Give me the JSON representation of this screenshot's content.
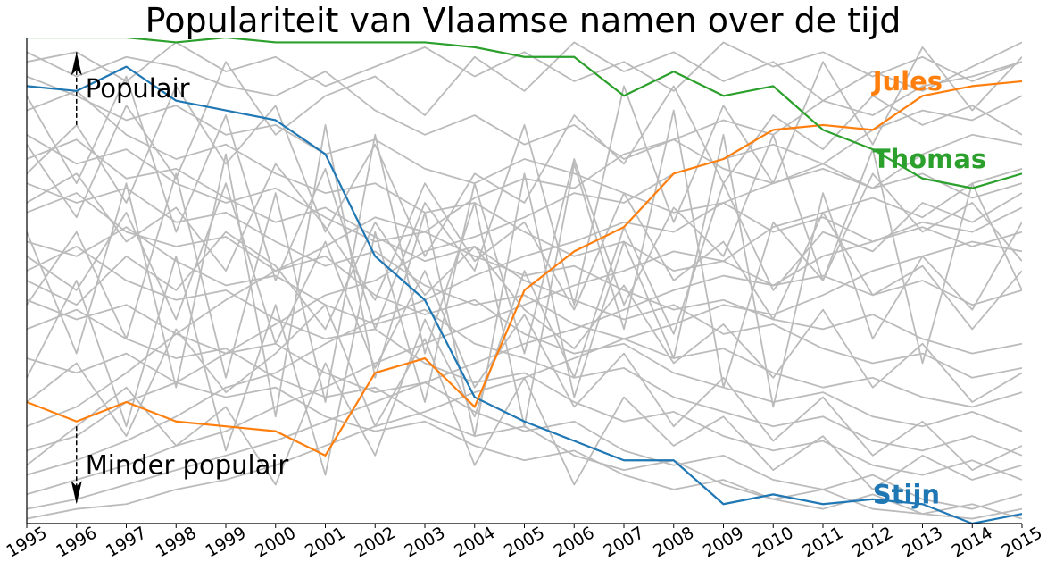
{
  "chart_data": {
    "type": "line",
    "title": "Populariteit van Vlaamse namen over de tijd",
    "xlabel": "",
    "ylabel": "",
    "x": [
      1995,
      1996,
      1997,
      1998,
      1999,
      2000,
      2001,
      2002,
      2003,
      2004,
      2005,
      2006,
      2007,
      2008,
      2009,
      2010,
      2011,
      2012,
      2013,
      2014,
      2015
    ],
    "x_tick_labels": [
      "1995",
      "1996",
      "1997",
      "1998",
      "1999",
      "2000",
      "2001",
      "2002",
      "2003",
      "2004",
      "2005",
      "2006",
      "2007",
      "2008",
      "2009",
      "2010",
      "2011",
      "2012",
      "2013",
      "2014",
      "2015"
    ],
    "xlim": [
      1995,
      2015
    ],
    "ylim": [
      0,
      100
    ],
    "y_axis_visible": false,
    "grid": false,
    "highlighted_series": [
      {
        "name": "Stijn",
        "color": "#1f77b4",
        "values": [
          90,
          89,
          94,
          87,
          85,
          83,
          76,
          55,
          46,
          26,
          21,
          17,
          13,
          13,
          4,
          6,
          4,
          5,
          4,
          0,
          2
        ]
      },
      {
        "name": "Jules",
        "color": "#ff7f0e",
        "values": [
          25,
          21,
          25,
          21,
          20,
          19,
          14,
          31,
          34,
          24,
          48,
          56,
          61,
          72,
          75,
          81,
          82,
          81,
          88,
          90,
          91
        ]
      },
      {
        "name": "Thomas",
        "color": "#2ca02c",
        "values": [
          100,
          100,
          100,
          99,
          100,
          99,
          99,
          99,
          99,
          98,
          96,
          96,
          88,
          93,
          88,
          90,
          81,
          77,
          71,
          69,
          72
        ]
      }
    ],
    "background_series_color": "#bbbbbb",
    "background_series": [
      [
        97,
        92,
        96,
        94,
        90,
        88,
        93,
        85,
        80,
        84,
        78,
        82,
        75,
        79,
        73,
        70,
        74,
        69,
        72,
        67,
        70
      ],
      [
        92,
        88,
        83,
        86,
        80,
        82,
        76,
        79,
        73,
        70,
        75,
        72,
        68,
        64,
        66,
        60,
        63,
        58,
        61,
        57,
        60
      ],
      [
        85,
        89,
        80,
        75,
        78,
        72,
        68,
        70,
        64,
        66,
        60,
        55,
        58,
        52,
        54,
        49,
        51,
        47,
        50,
        45,
        48
      ],
      [
        80,
        74,
        77,
        70,
        66,
        69,
        63,
        58,
        60,
        55,
        51,
        53,
        48,
        44,
        46,
        42,
        40,
        43,
        38,
        35,
        37
      ],
      [
        75,
        79,
        71,
        73,
        67,
        62,
        65,
        59,
        54,
        57,
        50,
        46,
        42,
        45,
        39,
        41,
        36,
        33,
        35,
        30,
        32
      ],
      [
        70,
        66,
        69,
        62,
        64,
        58,
        53,
        56,
        49,
        45,
        47,
        41,
        38,
        34,
        36,
        31,
        28,
        30,
        26,
        24,
        27
      ],
      [
        64,
        68,
        60,
        57,
        59,
        52,
        55,
        47,
        43,
        46,
        39,
        35,
        37,
        31,
        28,
        25,
        27,
        22,
        20,
        23,
        19
      ],
      [
        58,
        55,
        61,
        54,
        49,
        51,
        45,
        41,
        44,
        37,
        34,
        30,
        32,
        26,
        23,
        20,
        22,
        17,
        15,
        18,
        14
      ],
      [
        52,
        57,
        50,
        46,
        48,
        42,
        38,
        40,
        33,
        29,
        31,
        25,
        21,
        23,
        18,
        15,
        17,
        12,
        10,
        13,
        9
      ],
      [
        46,
        42,
        45,
        39,
        35,
        37,
        31,
        27,
        29,
        23,
        19,
        21,
        15,
        12,
        14,
        9,
        7,
        10,
        5,
        3,
        6
      ],
      [
        40,
        44,
        38,
        34,
        36,
        30,
        26,
        28,
        22,
        18,
        20,
        14,
        11,
        13,
        8,
        5,
        7,
        3,
        2,
        4,
        1
      ],
      [
        34,
        31,
        35,
        29,
        26,
        28,
        22,
        19,
        21,
        16,
        13,
        15,
        10,
        7,
        9,
        5,
        3,
        6,
        2,
        1,
        3
      ],
      [
        20,
        24,
        31,
        39,
        46,
        52,
        57,
        63,
        60,
        67,
        71,
        69,
        76,
        79,
        83,
        80,
        87,
        84,
        90,
        92,
        95
      ],
      [
        15,
        18,
        25,
        29,
        35,
        41,
        47,
        50,
        56,
        59,
        63,
        68,
        66,
        72,
        75,
        78,
        74,
        81,
        85,
        83,
        88
      ],
      [
        10,
        13,
        17,
        22,
        28,
        31,
        37,
        42,
        46,
        51,
        55,
        58,
        62,
        60,
        66,
        70,
        73,
        69,
        76,
        80,
        78
      ],
      [
        6,
        9,
        12,
        16,
        19,
        24,
        28,
        33,
        37,
        41,
        45,
        49,
        52,
        56,
        54,
        61,
        64,
        67,
        63,
        70,
        73
      ],
      [
        3,
        5,
        8,
        11,
        14,
        17,
        21,
        25,
        29,
        33,
        37,
        40,
        44,
        48,
        51,
        49,
        55,
        58,
        62,
        60,
        65
      ],
      [
        1,
        3,
        4,
        7,
        9,
        12,
        16,
        20,
        23,
        27,
        30,
        34,
        38,
        41,
        45,
        43,
        47,
        52,
        55,
        58,
        56
      ],
      [
        45,
        60,
        38,
        72,
        30,
        68,
        25,
        80,
        35,
        66,
        20,
        74,
        40,
        85,
        28,
        62,
        50,
        77,
        33,
        70,
        48
      ],
      [
        60,
        35,
        70,
        28,
        76,
        22,
        82,
        30,
        64,
        18,
        72,
        26,
        58,
        34,
        80,
        24,
        68,
        38,
        55,
        44,
        62
      ],
      [
        88,
        70,
        92,
        60,
        84,
        50,
        73,
        40,
        66,
        52,
        82,
        45,
        90,
        62,
        86,
        70,
        95,
        78,
        98,
        85,
        96
      ],
      [
        30,
        50,
        20,
        55,
        15,
        45,
        10,
        60,
        25,
        70,
        35,
        75,
        45,
        65,
        55,
        80,
        50,
        72,
        60,
        66,
        54
      ],
      [
        78,
        63,
        86,
        71,
        95,
        80,
        88,
        92,
        84,
        96,
        89,
        99,
        93,
        97,
        91,
        95,
        87,
        93,
        89,
        94,
        99
      ],
      [
        50,
        45,
        55,
        48,
        60,
        53,
        40,
        62,
        47,
        57,
        44,
        36,
        49,
        33,
        41,
        30,
        44,
        28,
        37,
        25,
        31
      ],
      [
        25,
        33,
        18,
        40,
        27,
        35,
        45,
        20,
        38,
        12,
        30,
        8,
        26,
        16,
        22,
        11,
        18,
        7,
        14,
        9,
        12
      ],
      [
        95,
        97,
        91,
        99,
        93,
        96,
        90,
        94,
        98,
        92,
        97,
        91,
        95,
        89,
        99,
        94,
        97,
        92,
        96,
        91,
        95
      ],
      [
        66,
        72,
        58,
        65,
        52,
        74,
        61,
        46,
        70,
        54,
        62,
        44,
        68,
        50,
        58,
        42,
        64,
        47,
        53,
        40,
        52
      ],
      [
        12,
        20,
        28,
        16,
        24,
        8,
        33,
        14,
        42,
        22,
        52,
        30,
        61,
        39,
        70,
        48,
        60,
        56,
        66,
        62,
        68
      ],
      [
        55,
        48,
        64,
        42,
        70,
        37,
        58,
        32,
        52,
        28,
        43,
        24,
        35,
        20,
        30,
        17,
        26,
        14,
        21,
        11,
        16
      ],
      [
        72,
        82,
        66,
        90,
        74,
        86,
        60,
        78,
        55,
        72,
        66,
        84,
        74,
        90,
        70,
        84,
        77,
        88,
        82,
        86,
        80
      ]
    ],
    "annotations": [
      {
        "text": "Populair",
        "arrow": "up",
        "x": 1996,
        "y_from": 82,
        "y_to": 97
      },
      {
        "text": "Minder populair",
        "arrow": "down",
        "x": 1996,
        "y_from": 20,
        "y_to": 4
      }
    ],
    "series_labels": [
      {
        "text": "Jules",
        "color": "#ff7f0e",
        "x": 2012,
        "y": 91
      },
      {
        "text": "Thomas",
        "color": "#2ca02c",
        "x": 2012,
        "y": 75
      },
      {
        "text": "Stijn",
        "color": "#1f77b4",
        "x": 2012,
        "y": 6
      }
    ]
  }
}
